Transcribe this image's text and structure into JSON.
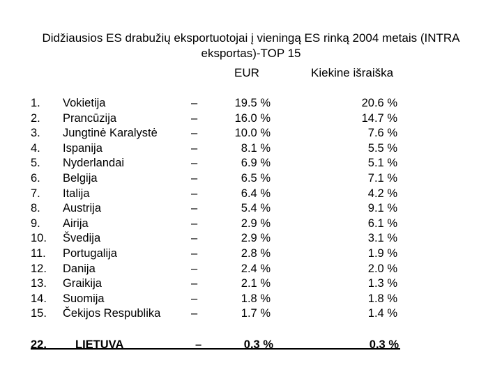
{
  "title": "Didžiausios ES drabužių eksportuotojai į vieningą ES rinką 2004 metais (INTRA eksportas)-TOP 15",
  "headers": {
    "eur": "EUR",
    "quantity": "Kiekine išraiška"
  },
  "dash": "–",
  "rows": [
    {
      "num": "1.",
      "country": "Vokietija",
      "eur": "19.5 %",
      "quantity": "20.6 %"
    },
    {
      "num": "2.",
      "country": "Prancūzija",
      "eur": "16.0 %",
      "quantity": "14.7 %"
    },
    {
      "num": "3.",
      "country": "Jungtinė Karalystė",
      "eur": "10.0 %",
      "quantity": "7.6 %"
    },
    {
      "num": "4.",
      "country": "Ispanija",
      "eur": "8.1 %",
      "quantity": "5.5 %"
    },
    {
      "num": "5.",
      "country": "Nyderlandai",
      "eur": "6.9 %",
      "quantity": "5.1 %"
    },
    {
      "num": "6.",
      "country": "Belgija",
      "eur": "6.5 %",
      "quantity": "7.1 %"
    },
    {
      "num": "7.",
      "country": "Italija",
      "eur": "6.4 %",
      "quantity": "4.2 %"
    },
    {
      "num": "8.",
      "country": "Austrija",
      "eur": "5.4 %",
      "quantity": "9.1 %"
    },
    {
      "num": "9.",
      "country": "Airija",
      "eur": "2.9 %",
      "quantity": "6.1 %"
    },
    {
      "num": "10.",
      "country": "Švedija",
      "eur": "2.9 %",
      "quantity": "3.1 %"
    },
    {
      "num": "11.",
      "country": "Portugalija",
      "eur": "2.8 %",
      "quantity": "1.9 %"
    },
    {
      "num": "12.",
      "country": "Danija",
      "eur": "2.4 %",
      "quantity": "2.0 %"
    },
    {
      "num": "13.",
      "country": "Graikija",
      "eur": "2.1 %",
      "quantity": "1.3 %"
    },
    {
      "num": "14.",
      "country": "Suomija",
      "eur": "1.8 %",
      "quantity": "1.8 %"
    },
    {
      "num": "15.",
      "country": "Čekijos Respublika",
      "eur": "1.7 %",
      "quantity": "1.4 %"
    }
  ],
  "lithuania": {
    "num": "22.",
    "country": "LIETUVA",
    "eur": "0.3 %",
    "quantity": "0.3 %"
  }
}
